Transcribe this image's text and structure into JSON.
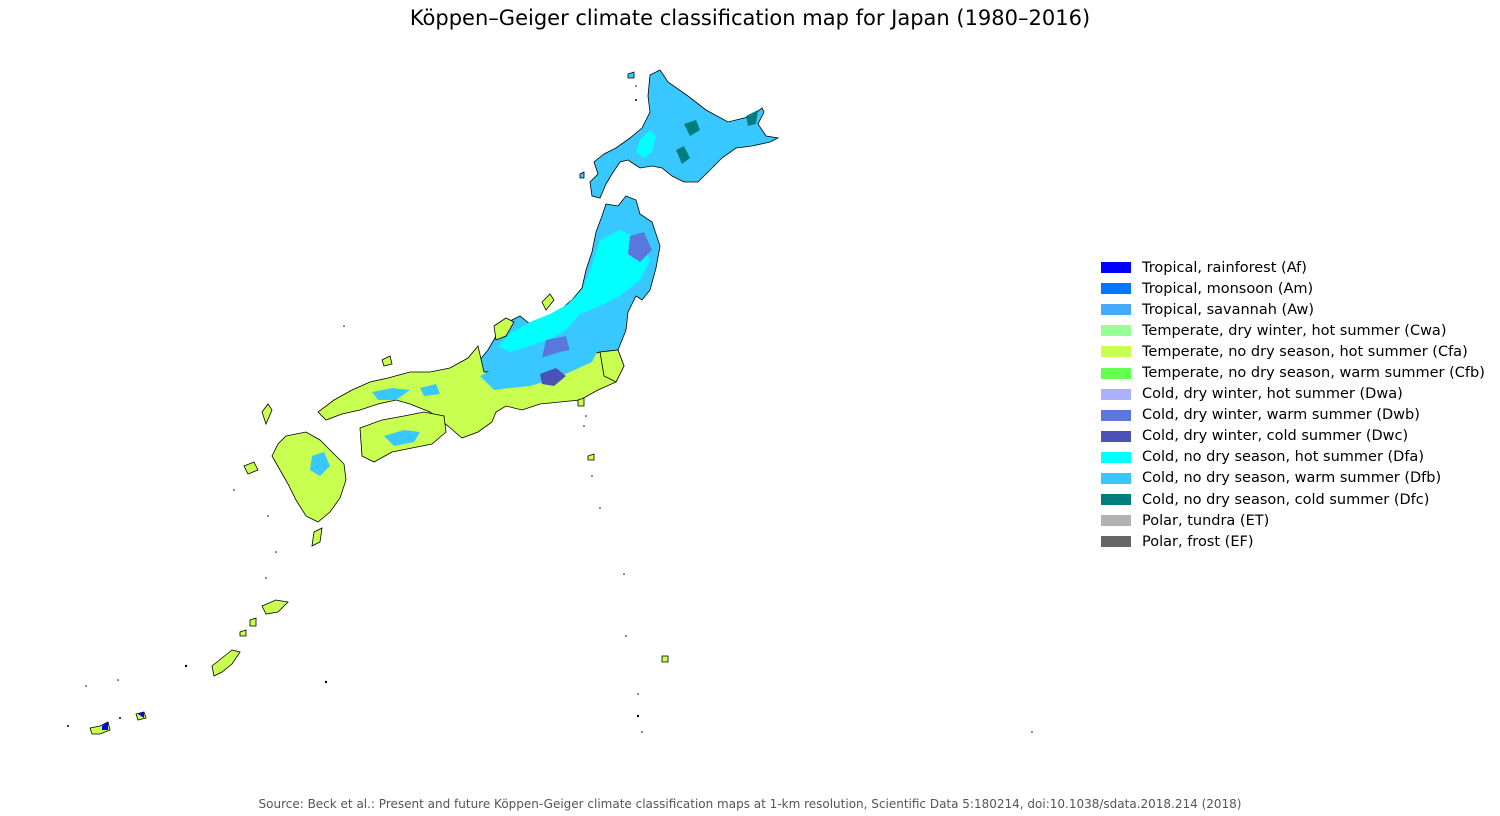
{
  "title": "Köppen–Geiger climate classification map for Japan (1980–2016)",
  "source": "Source: Beck et al.: Present and future Köppen-Geiger climate classification maps at 1-km resolution, Scientific Data 5:180214, doi:10.1038/sdata.2018.214 (2018)",
  "legend": [
    {
      "label": "Tropical, rainforest (Af)",
      "color": "#0000FE"
    },
    {
      "label": "Tropical, monsoon (Am)",
      "color": "#0077FF"
    },
    {
      "label": "Tropical, savannah (Aw)",
      "color": "#46A9FA"
    },
    {
      "label": "Temperate, dry winter, hot summer (Cwa)",
      "color": "#96FF96"
    },
    {
      "label": "Temperate, no dry season, hot summer (Cfa)",
      "color": "#C8FF50"
    },
    {
      "label": "Temperate, no dry season, warm summer (Cfb)",
      "color": "#64FF50"
    },
    {
      "label": "Cold, dry winter, hot summer (Dwa)",
      "color": "#ABB1FF"
    },
    {
      "label": "Cold, dry winter, warm summer (Dwb)",
      "color": "#5A77DB"
    },
    {
      "label": "Cold, dry winter, cold summer (Dwc)",
      "color": "#4C51B5"
    },
    {
      "label": "Cold, no dry season, hot summer (Dfa)",
      "color": "#00FFFF"
    },
    {
      "label": "Cold, no dry season, warm summer (Dfb)",
      "color": "#38C8FF"
    },
    {
      "label": "Cold, no dry season, cold summer (Dfc)",
      "color": "#007D7D"
    },
    {
      "label": "Polar, tundra (ET)",
      "color": "#B2B2B2"
    },
    {
      "label": "Polar, frost (EF)",
      "color": "#666666"
    }
  ],
  "map_colors": {
    "Cfa": "#C8FF50",
    "Dfa": "#00FFFF",
    "Dfb": "#38C8FF",
    "Dfc": "#007D7D",
    "Dwb": "#5A77DB",
    "Dwc": "#4C51B5",
    "Af": "#0000FE",
    "outline": "#000000"
  }
}
